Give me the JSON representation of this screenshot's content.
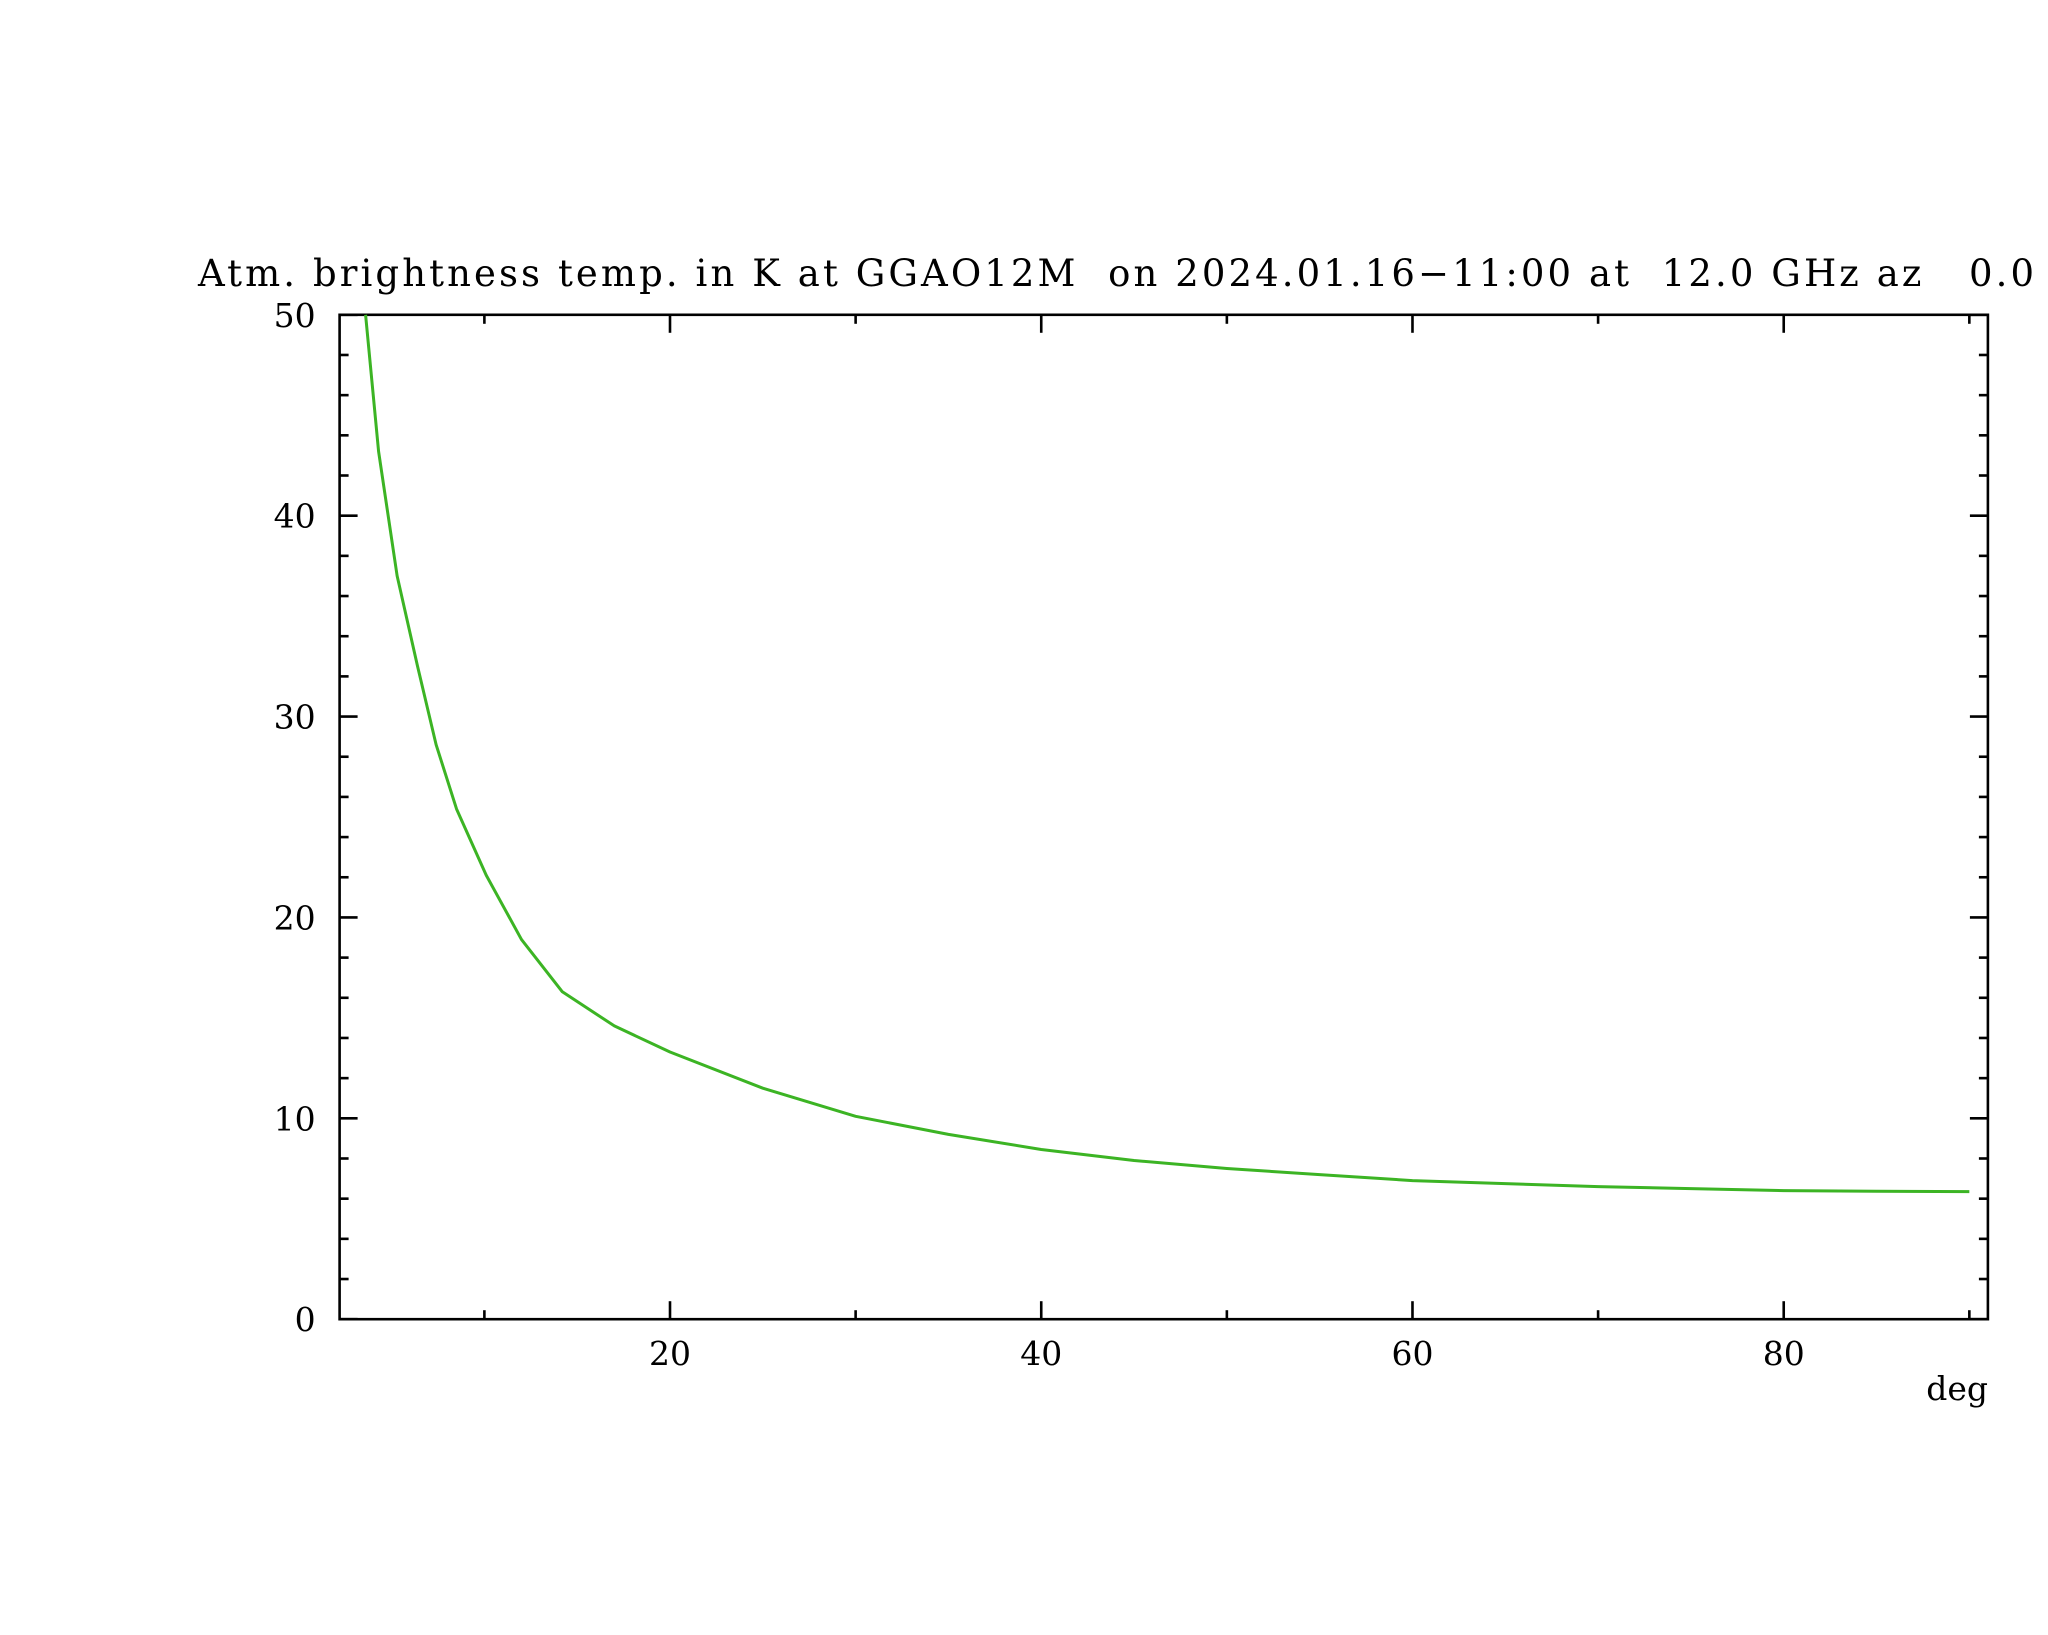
{
  "chart_data": {
    "type": "line",
    "title": "Atm. brightness temp. in K at GGAO12M  on 2024.01.16−11:00 at  12.0 GHz az   0.0",
    "x_label": "deg",
    "series": [
      {
        "color": "#3cb424",
        "x": [
          3.6,
          4.3,
          5.3,
          6.4,
          7.4,
          8.5,
          10.1,
          12,
          14.2,
          17,
          20,
          25,
          30,
          35,
          40,
          45,
          50,
          55,
          60,
          65,
          70,
          75,
          80,
          85,
          90
        ],
        "values": [
          50,
          43.2,
          37,
          32.5,
          28.6,
          25.4,
          22.1,
          18.9,
          16.3,
          14.6,
          13.3,
          11.5,
          10.1,
          9.2,
          8.45,
          7.9,
          7.5,
          7.2,
          6.9,
          6.75,
          6.6,
          6.5,
          6.4,
          6.37,
          6.35
        ]
      }
    ],
    "xlim": [
      2.2,
      91
    ],
    "xticks": [
      20,
      40,
      60,
      80
    ],
    "xminorticks": [
      10,
      30,
      50,
      70,
      90
    ],
    "ylim": [
      0,
      50
    ],
    "yticks": [
      0,
      10,
      20,
      30,
      40,
      50
    ],
    "yminorticks": [
      2,
      4,
      6,
      8,
      12,
      14,
      16,
      18,
      22,
      24,
      26,
      28,
      32,
      34,
      36,
      38,
      42,
      44,
      46,
      48
    ]
  }
}
